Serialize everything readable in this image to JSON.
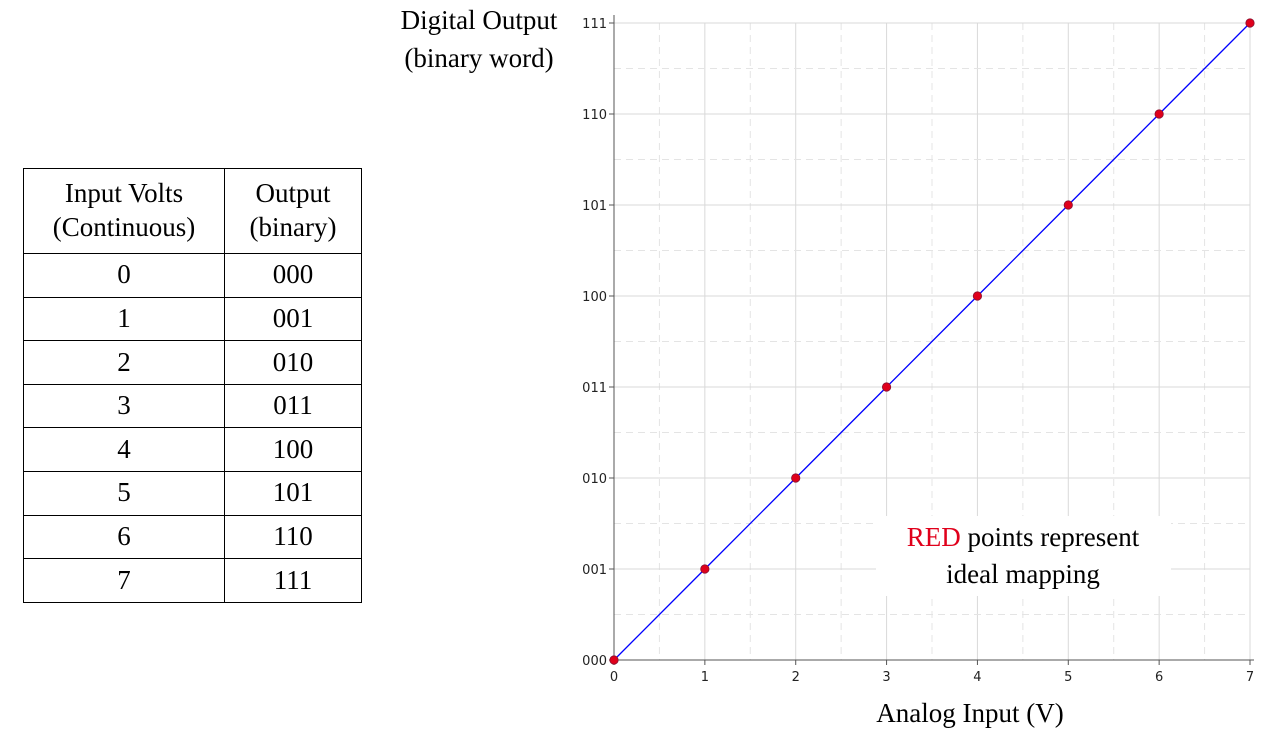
{
  "table": {
    "headers": [
      {
        "line1": "Input Volts",
        "line2": "(Continuous)"
      },
      {
        "line1": "Output",
        "line2": "(binary)"
      }
    ],
    "rows": [
      {
        "input": "0",
        "output": "000"
      },
      {
        "input": "1",
        "output": "001"
      },
      {
        "input": "2",
        "output": "010"
      },
      {
        "input": "3",
        "output": "011"
      },
      {
        "input": "4",
        "output": "100"
      },
      {
        "input": "5",
        "output": "101"
      },
      {
        "input": "6",
        "output": "110"
      },
      {
        "input": "7",
        "output": "111"
      }
    ]
  },
  "chart_data": {
    "type": "line",
    "ylabel_lines": [
      "Digital Output",
      "(binary word)"
    ],
    "xlabel": "Analog Input (V)",
    "x_ticks": [
      "0",
      "1",
      "2",
      "3",
      "4",
      "5",
      "6",
      "7"
    ],
    "y_ticks": [
      "000",
      "001",
      "010",
      "011",
      "100",
      "101",
      "110",
      "111"
    ],
    "xlim": [
      0,
      7
    ],
    "ylim": [
      0,
      7
    ],
    "grid": true,
    "series": [
      {
        "x": [
          0,
          1,
          2,
          3,
          4,
          5,
          6,
          7
        ],
        "y": [
          0,
          1,
          2,
          3,
          4,
          5,
          6,
          7
        ],
        "line_color": "#0000ff",
        "marker_color": "#e0001b"
      }
    ],
    "annotation": {
      "highlight": "RED",
      "rest": " points represent",
      "line2": "ideal mapping",
      "highlight_color": "#e0001b"
    }
  }
}
